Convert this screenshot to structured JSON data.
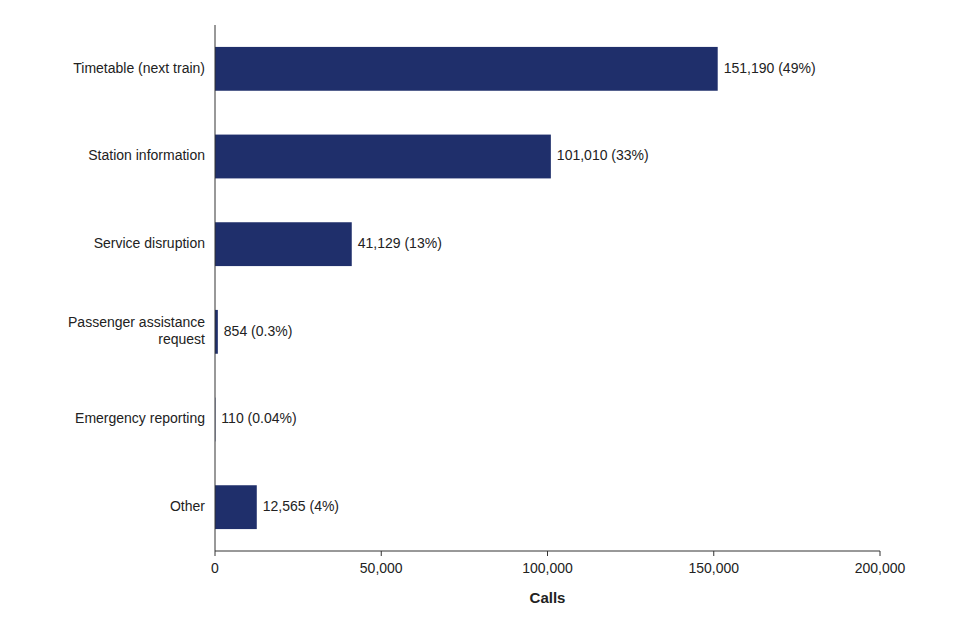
{
  "chart_data": {
    "type": "bar",
    "orientation": "horizontal",
    "categories": [
      "Other",
      "Emergency reporting",
      "Passenger assistance\nrequest",
      "Service disruption",
      "Station information",
      "Timetable (next train)"
    ],
    "values": [
      12565,
      110,
      854,
      41129,
      101010,
      151190
    ],
    "value_labels": [
      "12,565 (4%)",
      "110 (0.04%)",
      "854 (0.3%)",
      "41,129 (13%)",
      "101,010 (33%)",
      "151,190 (49%)"
    ],
    "data_labels": true,
    "color": "#1f2f6b",
    "xlabel": "Calls",
    "xlim": [
      0,
      200000
    ],
    "xticks": [
      0,
      {
        "value": 50000,
        "label": "50,000"
      },
      {
        "value": 100000,
        "label": "100,000"
      },
      {
        "value": 150000,
        "label": "150,000"
      },
      {
        "value": 200000,
        "label": "200,000"
      }
    ]
  }
}
